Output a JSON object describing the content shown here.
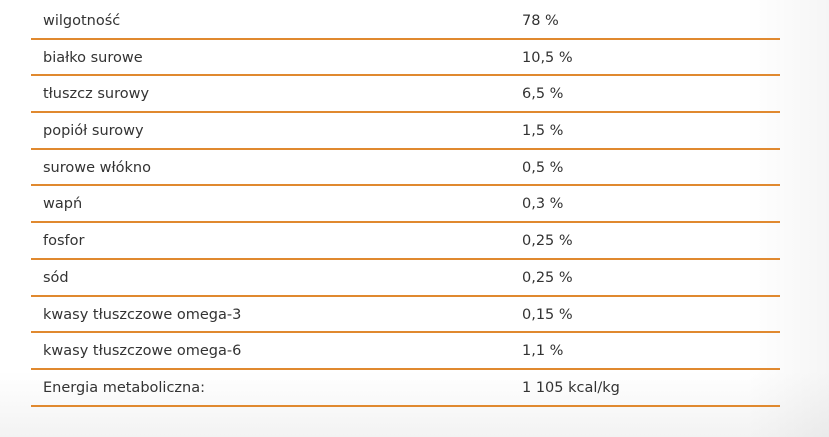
{
  "table": {
    "rows": [
      [
        "wilgotność",
        "78 %"
      ],
      [
        "białko surowe",
        "10,5 %"
      ],
      [
        "tłuszcz surowy",
        "6,5 %"
      ],
      [
        "popiół surowy",
        "1,5 %"
      ],
      [
        "surowe włókno",
        "0,5 %"
      ],
      [
        "wapń",
        "0,3 %"
      ],
      [
        "fosfor",
        "0,25 %"
      ],
      [
        "sód",
        "0,25 %"
      ],
      [
        "kwasy tłuszczowe omega-3",
        "0,15 %"
      ],
      [
        "kwasy tłuszczowe omega-6",
        "1,1 %"
      ],
      [
        "Energia metaboliczna:",
        "1 105 kcal/kg"
      ]
    ]
  }
}
